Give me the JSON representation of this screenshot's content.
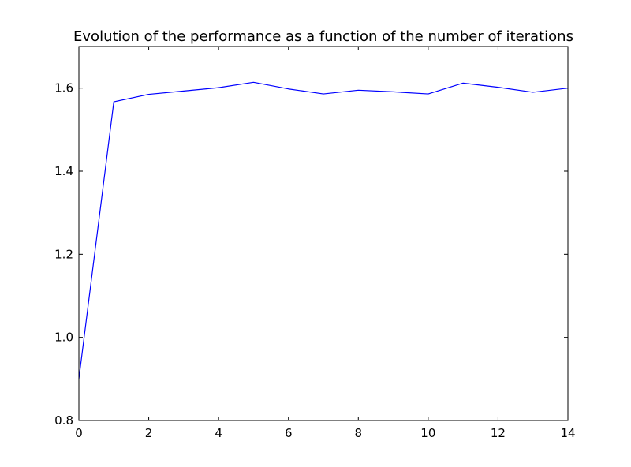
{
  "chart_data": {
    "type": "line",
    "title": "Evolution of the performance as a function of the number of iterations",
    "xlabel": "",
    "ylabel": "",
    "xlim": [
      0,
      14
    ],
    "ylim": [
      0.8,
      1.7
    ],
    "x_ticks": [
      0,
      2,
      4,
      6,
      8,
      10,
      12,
      14
    ],
    "x_tick_labels": [
      "0",
      "2",
      "4",
      "6",
      "8",
      "10",
      "12",
      "14"
    ],
    "y_ticks": [
      0.8,
      1.0,
      1.2,
      1.4,
      1.6
    ],
    "y_tick_labels": [
      "0.8",
      "1.0",
      "1.2",
      "1.4",
      "1.6"
    ],
    "grid": false,
    "series": [
      {
        "color": "#0000ff",
        "x": [
          0,
          1,
          2,
          3,
          4,
          5,
          6,
          7,
          8,
          9,
          10,
          11,
          12,
          13,
          14
        ],
        "y": [
          0.9,
          1.567,
          1.585,
          1.593,
          1.601,
          1.614,
          1.598,
          1.586,
          1.595,
          1.591,
          1.586,
          1.612,
          1.602,
          1.59,
          1.6
        ]
      }
    ]
  }
}
